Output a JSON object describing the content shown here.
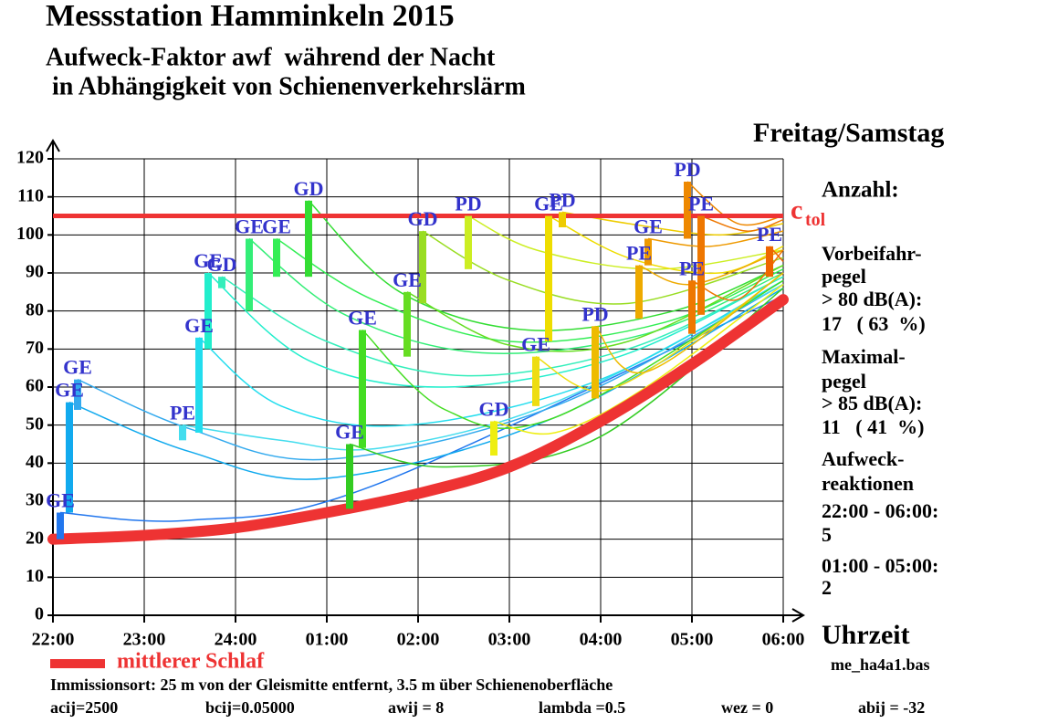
{
  "chart_data": {
    "type": "event-bars",
    "title": "Messstation Hamminkeln 2015",
    "subtitle": [
      "Aufweck-Faktor awf  während der Nacht",
      " in Abhängigkeit von Schienenverkehrslärm"
    ],
    "day_label": "Freitag/Samstag",
    "x_label": "Uhrzeit",
    "xlim": [
      0,
      8
    ],
    "xticks": [
      {
        "value": 0,
        "label": "22:00"
      },
      {
        "value": 1,
        "label": "23:00"
      },
      {
        "value": 2,
        "label": "24:00"
      },
      {
        "value": 3,
        "label": "01:00"
      },
      {
        "value": 4,
        "label": "02:00"
      },
      {
        "value": 5,
        "label": "03:00"
      },
      {
        "value": 6,
        "label": "04:00"
      },
      {
        "value": 7,
        "label": "05:00"
      },
      {
        "value": 8,
        "label": "06:00"
      }
    ],
    "ylim": [
      0,
      120
    ],
    "yticks": [
      0,
      10,
      20,
      30,
      40,
      50,
      60,
      70,
      80,
      90,
      100,
      110,
      120
    ],
    "grid": true,
    "threshold": {
      "label": "c",
      "label_sub": "tol",
      "value": 105,
      "color": "#ee3333"
    },
    "series": [
      {
        "name": "mittlerer Schlaf",
        "color": "#ee3333",
        "x": [
          0,
          1,
          2,
          3,
          4,
          5,
          6,
          7,
          8
        ],
        "values": [
          20,
          21,
          23,
          27,
          32,
          39,
          51,
          66,
          83
        ]
      }
    ],
    "events": [
      {
        "label": "GE",
        "x": 0.08,
        "low": 20,
        "high": 27,
        "color": "#2277ee",
        "curve_x": [
          1.5,
          3.5,
          8
        ],
        "curve_y": [
          25,
          34,
          84
        ]
      },
      {
        "label": "GE",
        "x": 0.18,
        "low": 27,
        "high": 56,
        "color": "#11aaee",
        "curve_x": [
          1.5,
          3.0,
          5.5,
          8
        ],
        "curve_y": [
          43,
          36,
          52,
          86
        ]
      },
      {
        "label": "GE",
        "x": 0.27,
        "low": 54,
        "high": 62,
        "color": "#33aaee",
        "curve_x": [
          1.5,
          3.0,
          5.5,
          8
        ],
        "curve_y": [
          49,
          41,
          55,
          87
        ]
      },
      {
        "label": "PE",
        "x": 1.42,
        "low": 46,
        "high": 50,
        "color": "#44ddee",
        "curve_x": [
          2.5,
          3.6,
          5.5,
          8
        ],
        "curve_y": [
          46,
          44,
          56,
          87
        ]
      },
      {
        "label": "GE",
        "x": 1.6,
        "low": 48,
        "high": 73,
        "color": "#22ddee",
        "curve_x": [
          2.5,
          3.9,
          6,
          8
        ],
        "curve_y": [
          55,
          50,
          62,
          88
        ]
      },
      {
        "label": "GE",
        "x": 1.7,
        "low": 70,
        "high": 90,
        "color": "#22eecc",
        "curve_x": [
          2.8,
          4.3,
          6.2,
          8
        ],
        "curve_y": [
          67,
          60,
          68,
          89
        ]
      },
      {
        "label": "GD",
        "x": 1.85,
        "low": 86,
        "high": 89,
        "color": "#33eebb",
        "curve_x": [
          3,
          4.5,
          6.3,
          8
        ],
        "curve_y": [
          72,
          63,
          70,
          89
        ]
      },
      {
        "label": "GE",
        "x": 2.15,
        "low": 80,
        "high": 99,
        "color": "#33ee77",
        "curve_x": [
          3.2,
          4.7,
          6.5,
          8
        ],
        "curve_y": [
          79,
          69,
          74,
          90
        ]
      },
      {
        "label": "GE",
        "x": 2.45,
        "low": 89,
        "high": 99,
        "color": "#33ee55",
        "curve_x": [
          3.5,
          5.0,
          6.7,
          8
        ],
        "curve_y": [
          83,
          72,
          77,
          91
        ]
      },
      {
        "label": "GD",
        "x": 2.8,
        "low": 89,
        "high": 109,
        "color": "#33dd33",
        "curve_x": [
          3.8,
          5.2,
          6.8,
          8
        ],
        "curve_y": [
          85,
          75,
          80,
          92
        ]
      },
      {
        "label": "GE",
        "x": 3.25,
        "low": 28,
        "high": 45,
        "color": "#33cc22",
        "curve_x": [
          4.3,
          6,
          8
        ],
        "curve_y": [
          39,
          47,
          86
        ]
      },
      {
        "label": "GE",
        "x": 3.39,
        "low": 44,
        "high": 75,
        "color": "#44dd22",
        "curve_x": [
          4.3,
          5.5,
          8
        ],
        "curve_y": [
          54,
          52,
          88
        ]
      },
      {
        "label": "GE",
        "x": 3.88,
        "low": 68,
        "high": 85,
        "color": "#66dd22",
        "curve_x": [
          5,
          6.3,
          8
        ],
        "curve_y": [
          71,
          72,
          92
        ]
      },
      {
        "label": "GD",
        "x": 4.05,
        "low": 82,
        "high": 101,
        "color": "#99dd22",
        "curve_x": [
          5,
          6.3,
          8
        ],
        "curve_y": [
          88,
          82,
          94
        ]
      },
      {
        "label": "PD",
        "x": 4.55,
        "low": 91,
        "high": 105,
        "color": "#ccee22",
        "curve_x": [
          5.3,
          6.6,
          8
        ],
        "curve_y": [
          96,
          91,
          96
        ]
      },
      {
        "label": "GD",
        "x": 4.83,
        "low": 42,
        "high": 51,
        "color": "#eeee11",
        "curve_x": [
          5.5,
          6.5,
          8
        ],
        "curve_y": [
          48,
          60,
          87
        ]
      },
      {
        "label": "GE",
        "x": 5.29,
        "low": 55,
        "high": 68,
        "color": "#eedd11",
        "curve_x": [
          6,
          7,
          8
        ],
        "curve_y": [
          59,
          72,
          90
        ]
      },
      {
        "label": "GE",
        "x": 5.43,
        "low": 72,
        "high": 105,
        "color": "#eedd00",
        "curve_x": [
          6.3,
          7.3,
          8
        ],
        "curve_y": [
          94,
          90,
          97
        ]
      },
      {
        "label": "PD",
        "x": 5.58,
        "low": 102,
        "high": 106,
        "color": "#eecc00",
        "curve_x": [
          6.3,
          7.3,
          8
        ],
        "curve_y": [
          103,
          100,
          103
        ]
      },
      {
        "label": "PD",
        "x": 5.94,
        "low": 57,
        "high": 76,
        "color": "#eebb00",
        "curve_x": [
          6.5,
          8
        ],
        "curve_y": [
          64,
          90
        ]
      },
      {
        "label": "PE",
        "x": 6.42,
        "low": 78,
        "high": 92,
        "color": "#eeaa00",
        "curve_x": [
          7,
          8
        ],
        "curve_y": [
          87,
          96
        ]
      },
      {
        "label": "GE",
        "x": 6.52,
        "low": 92,
        "high": 99,
        "color": "#ee9900",
        "curve_x": [
          7.2,
          8
        ],
        "curve_y": [
          97,
          101
        ]
      },
      {
        "label": "PD",
        "x": 6.95,
        "low": 99,
        "high": 114,
        "color": "#ee8800",
        "curve_x": [
          7.5,
          8
        ],
        "curve_y": [
          103,
          105
        ]
      },
      {
        "label": "PE",
        "x": 7.0,
        "low": 74,
        "high": 88,
        "color": "#ee7700",
        "curve_x": [
          7.5,
          8
        ],
        "curve_y": [
          83,
          96
        ]
      },
      {
        "label": "PE",
        "x": 7.1,
        "low": 79,
        "high": 105,
        "color": "#ee7700",
        "curve_x": [
          7.6,
          8
        ],
        "curve_y": [
          101,
          104
        ]
      },
      {
        "label": "PE",
        "x": 7.85,
        "low": 89,
        "high": 97,
        "color": "#ee6600",
        "curve_x": [
          8
        ],
        "curve_y": [
          93
        ]
      }
    ],
    "side_text": [
      "Anzahl:",
      "Vorbeifahr-",
      "pegel",
      "> 80 dB(A):",
      "17   ( 63  %)",
      "Maximal-",
      "pegel",
      "> 85 dB(A):",
      "11   ( 41  %)",
      "Aufweck-",
      "reaktionen",
      "22:00 - 06:00:",
      "5",
      "01:00 - 05:00:",
      "2"
    ],
    "file": "me_ha4a1.bas",
    "location": "Immissionsort: 25 m von der Gleismitte entfernt, 3.5 m über Schienenoberfläche",
    "parameters": [
      "acij=2500",
      "bcij=0.05000",
      "awij = 8",
      "lambda =0.5",
      "wez = 0",
      "abij = -32"
    ]
  }
}
